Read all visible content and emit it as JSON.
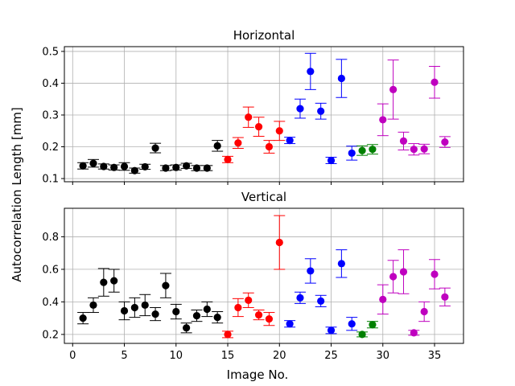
{
  "figure": {
    "ylabel": "Autocorrelation Length [mm]",
    "xlabel": "Image No."
  },
  "colors": {
    "black": "#000000",
    "red": "#ff0000",
    "blue": "#0000ff",
    "green": "#008000",
    "magenta": "#bf00bf"
  },
  "chart_data": [
    {
      "type": "scatter",
      "title": "Horizontal",
      "xlim": [
        -0.8,
        37.8
      ],
      "ylim": [
        0.09,
        0.515
      ],
      "xticks": [
        0,
        5,
        10,
        15,
        20,
        25,
        30,
        35
      ],
      "yticks": [
        0.1,
        0.2,
        0.3,
        0.4,
        0.5
      ],
      "ytick_labels": [
        "0.1",
        "0.2",
        "0.3",
        "0.4",
        "0.5"
      ],
      "grid": true,
      "series": [
        {
          "color": "black",
          "x": [
            1,
            2,
            3,
            4,
            5,
            6,
            7,
            8,
            9,
            10,
            11,
            12,
            13,
            14
          ],
          "y": [
            0.14,
            0.148,
            0.138,
            0.135,
            0.138,
            0.125,
            0.137,
            0.196,
            0.133,
            0.135,
            0.14,
            0.133,
            0.133,
            0.203
          ],
          "err": [
            0.01,
            0.012,
            0.008,
            0.008,
            0.012,
            0.008,
            0.008,
            0.015,
            0.008,
            0.008,
            0.008,
            0.008,
            0.008,
            0.017
          ]
        },
        {
          "color": "red",
          "x": [
            15,
            16,
            17,
            18,
            19,
            20
          ],
          "y": [
            0.16,
            0.212,
            0.293,
            0.263,
            0.2,
            0.25
          ],
          "err": [
            0.01,
            0.017,
            0.032,
            0.03,
            0.02,
            0.03
          ]
        },
        {
          "color": "blue",
          "x": [
            21,
            22,
            23,
            24,
            25,
            26,
            27
          ],
          "y": [
            0.22,
            0.32,
            0.437,
            0.312,
            0.157,
            0.415,
            0.18
          ],
          "err": [
            0.01,
            0.03,
            0.057,
            0.025,
            0.01,
            0.06,
            0.022
          ]
        },
        {
          "color": "green",
          "x": [
            28,
            29
          ],
          "y": [
            0.188,
            0.192
          ],
          "err": [
            0.015,
            0.015
          ]
        },
        {
          "color": "magenta",
          "x": [
            30,
            31,
            32,
            33,
            34,
            35,
            36
          ],
          "y": [
            0.285,
            0.38,
            0.218,
            0.192,
            0.193,
            0.403,
            0.215
          ],
          "err": [
            0.05,
            0.093,
            0.028,
            0.018,
            0.015,
            0.05,
            0.017
          ]
        }
      ]
    },
    {
      "type": "scatter",
      "title": "Vertical",
      "xlim": [
        -0.8,
        37.8
      ],
      "ylim": [
        0.145,
        0.975
      ],
      "xticks": [
        0,
        5,
        10,
        15,
        20,
        25,
        30,
        35
      ],
      "xtick_labels": [
        "0",
        "5",
        "10",
        "15",
        "20",
        "25",
        "30",
        "35"
      ],
      "yticks": [
        0.2,
        0.4,
        0.6,
        0.8
      ],
      "ytick_labels": [
        "0.2",
        "0.4",
        "0.6",
        "0.8"
      ],
      "grid": true,
      "series": [
        {
          "color": "black",
          "x": [
            1,
            2,
            3,
            4,
            5,
            6,
            7,
            8,
            9,
            10,
            11,
            12,
            13,
            14
          ],
          "y": [
            0.3,
            0.38,
            0.52,
            0.53,
            0.345,
            0.365,
            0.38,
            0.325,
            0.5,
            0.34,
            0.24,
            0.315,
            0.355,
            0.305
          ],
          "err": [
            0.035,
            0.045,
            0.085,
            0.07,
            0.055,
            0.06,
            0.065,
            0.04,
            0.075,
            0.045,
            0.03,
            0.035,
            0.045,
            0.035
          ]
        },
        {
          "color": "red",
          "x": [
            15,
            16,
            17,
            18,
            19,
            20
          ],
          "y": [
            0.2,
            0.365,
            0.41,
            0.32,
            0.295,
            0.765
          ],
          "err": [
            0.02,
            0.055,
            0.045,
            0.03,
            0.04,
            0.165
          ]
        },
        {
          "color": "blue",
          "x": [
            21,
            22,
            23,
            24,
            25,
            26,
            27
          ],
          "y": [
            0.265,
            0.425,
            0.59,
            0.405,
            0.225,
            0.635,
            0.265
          ],
          "err": [
            0.02,
            0.035,
            0.075,
            0.035,
            0.02,
            0.085,
            0.04
          ]
        },
        {
          "color": "green",
          "x": [
            28,
            29
          ],
          "y": [
            0.2,
            0.26
          ],
          "err": [
            0.015,
            0.02
          ]
        },
        {
          "color": "magenta",
          "x": [
            30,
            31,
            32,
            33,
            34,
            35,
            36
          ],
          "y": [
            0.415,
            0.555,
            0.585,
            0.21,
            0.34,
            0.57,
            0.43
          ],
          "err": [
            0.09,
            0.1,
            0.135,
            0.015,
            0.06,
            0.09,
            0.055
          ]
        }
      ]
    }
  ]
}
